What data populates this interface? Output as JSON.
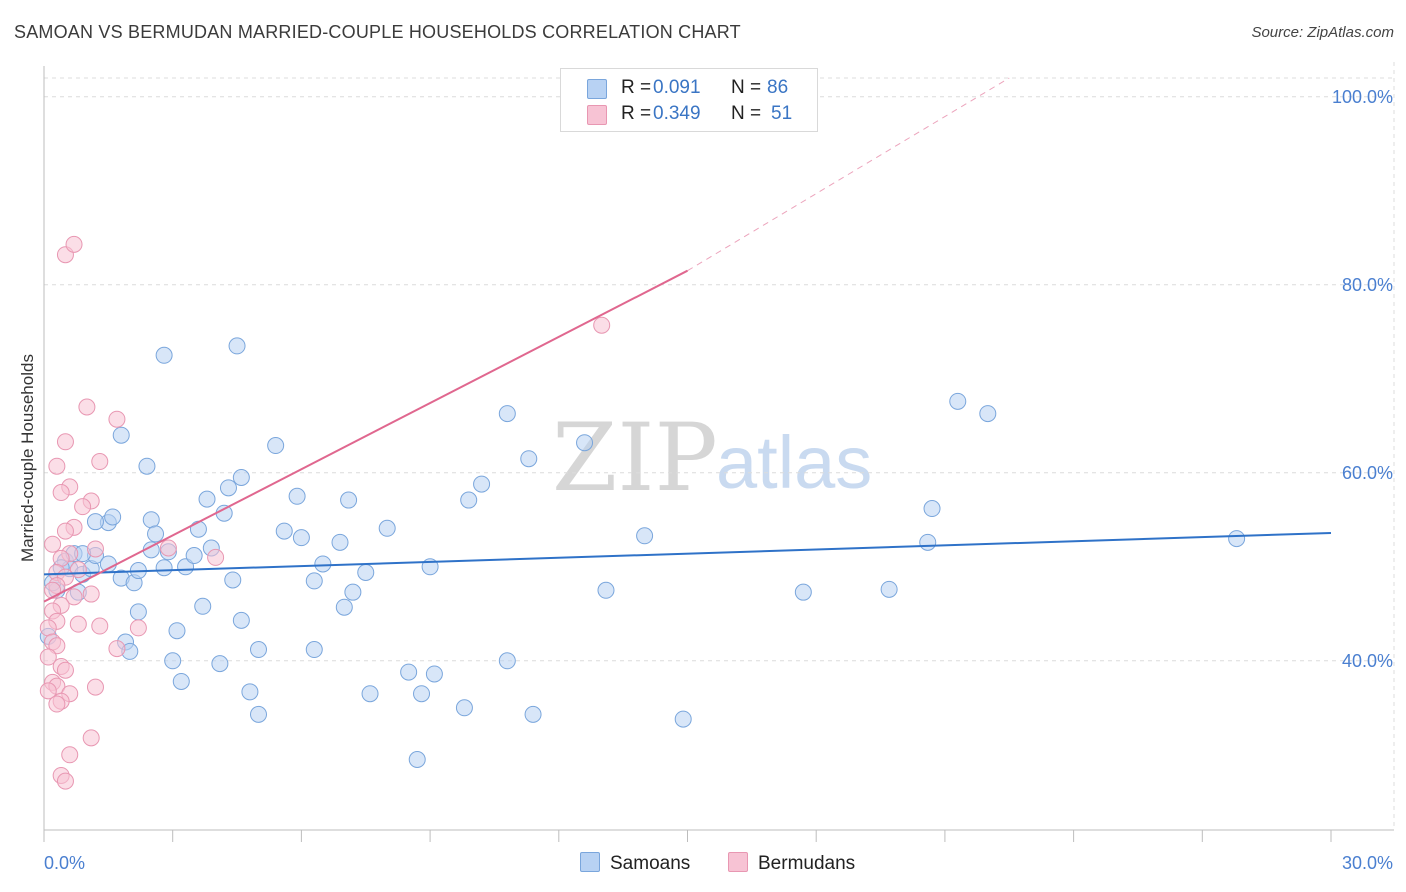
{
  "header": {
    "title": "SAMOAN VS BERMUDAN MARRIED-COUPLE HOUSEHOLDS CORRELATION CHART",
    "source": "Source: ZipAtlas.com"
  },
  "watermark": {
    "zip": "ZIP",
    "atlas": "atlas"
  },
  "legend": {
    "r_label": "R =",
    "n_label": "N =",
    "items": [
      {
        "name": "Samoans",
        "r": "0.091",
        "n": "86",
        "fill": "#b8d2f3",
        "stroke": "#7aa6dc"
      },
      {
        "name": "Bermudans",
        "r": "0.349",
        "n": "51",
        "fill": "#f7c3d4",
        "stroke": "#e897b2"
      }
    ]
  },
  "chart_data": {
    "type": "scatter",
    "title": "SAMOAN VS BERMUDAN MARRIED-COUPLE HOUSEHOLDS CORRELATION CHART",
    "xlabel": "",
    "ylabel": "Married-couple Households",
    "xlim": [
      0,
      30
    ],
    "ylim": [
      22,
      102
    ],
    "x_tick_labels": [
      {
        "value": 0,
        "label": "0.0%"
      },
      {
        "value": 30,
        "label": "30.0%"
      }
    ],
    "y_tick_labels": [
      {
        "value": 40,
        "label": "40.0%"
      },
      {
        "value": 60,
        "label": "60.0%"
      },
      {
        "value": 80,
        "label": "80.0%"
      },
      {
        "value": 100,
        "label": "100.0%"
      }
    ],
    "grid": true,
    "series": [
      {
        "name": "Samoans",
        "color": "#b8d2f3",
        "stroke": "#7aa6dc",
        "line_color": "#2f72c8",
        "trend": {
          "x0": 0,
          "y0": 49.2,
          "x1": 30,
          "y1": 53.6
        },
        "points": [
          [
            0.1,
            42.6
          ],
          [
            0.3,
            47.5
          ],
          [
            0.2,
            48.3
          ],
          [
            0.5,
            50.6
          ],
          [
            0.6,
            49.8
          ],
          [
            0.7,
            51.4
          ],
          [
            0.4,
            49.9
          ],
          [
            0.8,
            47.3
          ],
          [
            0.9,
            49.2
          ],
          [
            1.1,
            49.8
          ],
          [
            1.2,
            51.2
          ],
          [
            1.5,
            54.7
          ],
          [
            1.6,
            55.3
          ],
          [
            1.8,
            48.8
          ],
          [
            1.9,
            42.0
          ],
          [
            2.0,
            41.0
          ],
          [
            2.1,
            48.3
          ],
          [
            2.2,
            45.2
          ],
          [
            2.4,
            60.7
          ],
          [
            2.5,
            55.0
          ],
          [
            2.6,
            53.5
          ],
          [
            2.8,
            49.9
          ],
          [
            2.9,
            51.6
          ],
          [
            3.1,
            43.2
          ],
          [
            3.2,
            37.8
          ],
          [
            3.3,
            50.0
          ],
          [
            3.5,
            51.2
          ],
          [
            3.6,
            54.0
          ],
          [
            3.7,
            45.8
          ],
          [
            3.8,
            57.2
          ],
          [
            4.1,
            39.7
          ],
          [
            4.2,
            55.7
          ],
          [
            4.3,
            58.4
          ],
          [
            4.4,
            48.6
          ],
          [
            4.6,
            44.3
          ],
          [
            4.8,
            36.7
          ],
          [
            5.0,
            34.3
          ],
          [
            5.4,
            62.9
          ],
          [
            5.6,
            53.8
          ],
          [
            5.9,
            57.5
          ],
          [
            6.0,
            53.1
          ],
          [
            6.3,
            48.5
          ],
          [
            6.5,
            50.3
          ],
          [
            7.0,
            45.7
          ],
          [
            7.2,
            47.3
          ],
          [
            7.5,
            49.4
          ],
          [
            7.6,
            36.5
          ],
          [
            8.0,
            54.1
          ],
          [
            8.5,
            38.8
          ],
          [
            8.8,
            36.5
          ],
          [
            9.0,
            50.0
          ],
          [
            9.9,
            57.1
          ],
          [
            10.2,
            58.8
          ],
          [
            10.8,
            66.3
          ],
          [
            11.3,
            61.5
          ],
          [
            11.4,
            34.3
          ],
          [
            12.6,
            63.2
          ],
          [
            13.1,
            47.5
          ],
          [
            14.0,
            53.3
          ],
          [
            14.9,
            33.8
          ],
          [
            17.7,
            47.3
          ],
          [
            19.7,
            47.6
          ],
          [
            20.6,
            52.6
          ],
          [
            20.7,
            56.2
          ],
          [
            21.3,
            67.6
          ],
          [
            22.0,
            66.3
          ],
          [
            27.8,
            53.0
          ],
          [
            2.8,
            72.5
          ],
          [
            4.5,
            73.5
          ],
          [
            1.8,
            64.0
          ],
          [
            3.0,
            40.0
          ],
          [
            1.2,
            54.8
          ],
          [
            0.9,
            51.4
          ],
          [
            5.0,
            41.2
          ],
          [
            7.1,
            57.1
          ],
          [
            6.9,
            52.6
          ],
          [
            3.9,
            52.0
          ],
          [
            2.5,
            51.8
          ],
          [
            8.7,
            29.5
          ],
          [
            9.1,
            38.6
          ],
          [
            10.8,
            40.0
          ],
          [
            4.6,
            59.5
          ],
          [
            2.2,
            49.6
          ],
          [
            1.5,
            50.3
          ],
          [
            6.3,
            41.2
          ],
          [
            9.8,
            35.0
          ]
        ]
      },
      {
        "name": "Bermudans",
        "color": "#f7c3d4",
        "stroke": "#e897b2",
        "line_color": "#e0678f",
        "trend": {
          "x0": 0,
          "y0": 46.3,
          "x1": 15.0,
          "y1": 81.5
        },
        "trend_extension": {
          "x0": 15.0,
          "y0": 81.5,
          "x1": 22.5,
          "y1": 102
        },
        "points": [
          [
            0.5,
            83.2
          ],
          [
            0.7,
            84.3
          ],
          [
            1.7,
            65.7
          ],
          [
            0.5,
            63.3
          ],
          [
            0.3,
            60.7
          ],
          [
            1.3,
            61.2
          ],
          [
            0.6,
            58.5
          ],
          [
            0.4,
            57.9
          ],
          [
            1.1,
            57.0
          ],
          [
            0.9,
            56.4
          ],
          [
            0.2,
            52.4
          ],
          [
            0.7,
            54.2
          ],
          [
            0.5,
            53.8
          ],
          [
            0.6,
            51.4
          ],
          [
            1.2,
            51.9
          ],
          [
            0.4,
            50.9
          ],
          [
            0.3,
            49.4
          ],
          [
            0.8,
            49.7
          ],
          [
            0.5,
            48.9
          ],
          [
            0.3,
            48.0
          ],
          [
            0.2,
            47.5
          ],
          [
            0.7,
            46.8
          ],
          [
            1.1,
            47.1
          ],
          [
            0.4,
            45.9
          ],
          [
            0.2,
            45.3
          ],
          [
            0.3,
            44.2
          ],
          [
            0.8,
            43.9
          ],
          [
            1.3,
            43.7
          ],
          [
            0.1,
            43.5
          ],
          [
            0.2,
            42.0
          ],
          [
            0.3,
            41.6
          ],
          [
            1.7,
            41.3
          ],
          [
            0.1,
            40.4
          ],
          [
            0.4,
            39.4
          ],
          [
            0.5,
            39.0
          ],
          [
            0.2,
            37.7
          ],
          [
            0.3,
            37.3
          ],
          [
            0.1,
            36.8
          ],
          [
            1.2,
            37.2
          ],
          [
            0.6,
            36.5
          ],
          [
            0.4,
            35.7
          ],
          [
            0.3,
            35.4
          ],
          [
            1.1,
            31.8
          ],
          [
            0.6,
            30.0
          ],
          [
            0.4,
            27.8
          ],
          [
            0.5,
            27.2
          ],
          [
            13.0,
            75.7
          ],
          [
            1.0,
            67.0
          ],
          [
            4.0,
            51.0
          ],
          [
            2.2,
            43.5
          ],
          [
            2.9,
            52.0
          ]
        ]
      }
    ]
  },
  "bottom_legend": [
    "Samoans",
    "Bermudans"
  ]
}
